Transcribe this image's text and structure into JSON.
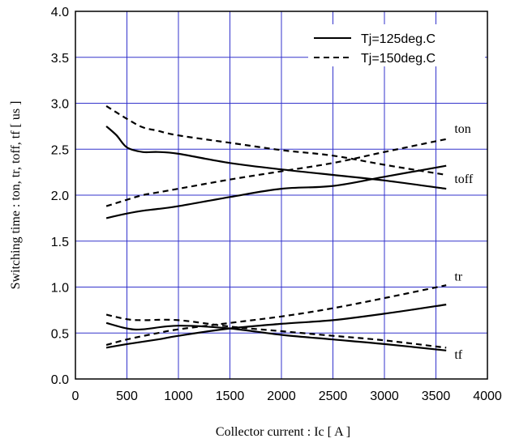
{
  "chart_data": {
    "type": "line",
    "xlabel": "Collector current : Ic [ A ]",
    "ylabel": "Switching time : ton, tr, toff, tf [ us ]",
    "xlim": [
      0,
      4000
    ],
    "ylim": [
      0,
      4.0
    ],
    "x_ticks": [
      "0",
      "500",
      "1000",
      "1500",
      "2000",
      "2500",
      "3000",
      "3500",
      "4000"
    ],
    "x_tick_values": [
      0,
      500,
      1000,
      1500,
      2000,
      2500,
      3000,
      3500,
      4000
    ],
    "y_ticks": [
      "0.0",
      "0.5",
      "1.0",
      "1.5",
      "2.0",
      "2.5",
      "3.0",
      "3.5",
      "4.0"
    ],
    "y_tick_values": [
      0,
      0.5,
      1.0,
      1.5,
      2.0,
      2.5,
      3.0,
      3.5,
      4.0
    ],
    "grid": true,
    "grid_color": "#3333cc",
    "legend_position": "top-right",
    "legend": [
      {
        "label": "Tj=125deg.C",
        "style": "solid"
      },
      {
        "label": "Tj=150deg.C",
        "style": "dashed"
      }
    ],
    "series": [
      {
        "condition": "Tj=125deg.C",
        "curve": "ton",
        "style": "solid",
        "x": [
          300,
          500,
          650,
          800,
          1000,
          1500,
          2000,
          2500,
          3000,
          3600
        ],
        "y": [
          1.75,
          1.8,
          1.83,
          1.85,
          1.88,
          1.98,
          2.07,
          2.1,
          2.2,
          2.32
        ]
      },
      {
        "condition": "Tj=150deg.C",
        "curve": "ton",
        "style": "dashed",
        "x": [
          300,
          500,
          650,
          800,
          1000,
          1500,
          2000,
          2500,
          3000,
          3600
        ],
        "y": [
          1.88,
          1.95,
          2.0,
          2.03,
          2.07,
          2.17,
          2.26,
          2.35,
          2.47,
          2.61
        ]
      },
      {
        "condition": "Tj=125deg.C",
        "curve": "toff",
        "style": "solid",
        "x": [
          300,
          400,
          500,
          650,
          800,
          1000,
          1500,
          2000,
          2500,
          3000,
          3600
        ],
        "y": [
          2.75,
          2.65,
          2.52,
          2.47,
          2.47,
          2.45,
          2.35,
          2.28,
          2.22,
          2.16,
          2.07
        ]
      },
      {
        "condition": "Tj=150deg.C",
        "curve": "toff",
        "style": "dashed",
        "x": [
          300,
          500,
          650,
          800,
          1000,
          1500,
          2000,
          2500,
          3000,
          3600
        ],
        "y": [
          2.97,
          2.83,
          2.74,
          2.7,
          2.65,
          2.57,
          2.49,
          2.43,
          2.33,
          2.22
        ]
      },
      {
        "condition": "Tj=125deg.C",
        "curve": "tr",
        "style": "solid",
        "x": [
          300,
          500,
          800,
          1000,
          1500,
          2000,
          2500,
          3000,
          3600
        ],
        "y": [
          0.34,
          0.38,
          0.43,
          0.47,
          0.55,
          0.6,
          0.64,
          0.71,
          0.81
        ]
      },
      {
        "condition": "Tj=150deg.C",
        "curve": "tr",
        "style": "dashed",
        "x": [
          300,
          500,
          800,
          1000,
          1500,
          2000,
          2500,
          3000,
          3600
        ],
        "y": [
          0.37,
          0.43,
          0.5,
          0.54,
          0.61,
          0.68,
          0.77,
          0.88,
          1.02
        ]
      },
      {
        "condition": "Tj=125deg.C",
        "curve": "tf",
        "style": "solid",
        "x": [
          300,
          500,
          650,
          1000,
          1500,
          2000,
          2500,
          3000,
          3600
        ],
        "y": [
          0.61,
          0.55,
          0.54,
          0.58,
          0.55,
          0.48,
          0.43,
          0.38,
          0.31
        ]
      },
      {
        "condition": "Tj=150deg.C",
        "curve": "tf",
        "style": "dashed",
        "x": [
          300,
          500,
          650,
          1000,
          1500,
          2000,
          2500,
          3000,
          3600
        ],
        "y": [
          0.7,
          0.65,
          0.64,
          0.64,
          0.57,
          0.52,
          0.47,
          0.42,
          0.34
        ]
      }
    ],
    "annotations": [
      {
        "text": "ton",
        "x": 3680,
        "y": 2.68
      },
      {
        "text": "toff",
        "x": 3680,
        "y": 2.13
      },
      {
        "text": "tr",
        "x": 3680,
        "y": 1.07
      },
      {
        "text": "tf",
        "x": 3680,
        "y": 0.22
      }
    ]
  }
}
